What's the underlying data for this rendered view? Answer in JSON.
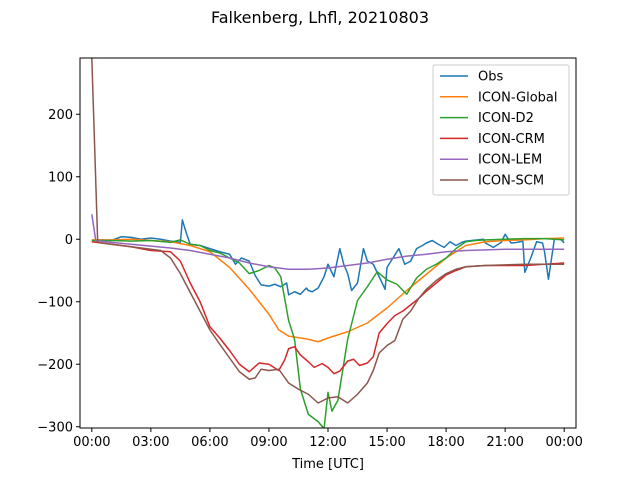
{
  "chart_data": {
    "type": "line",
    "title": "Falkenberg, Lhfl, 20210803",
    "xlabel": "Time [UTC]",
    "ylabel": "",
    "xlim": [
      -0.6,
      24.6
    ],
    "ylim": [
      -302,
      290
    ],
    "x_ticks": [
      0,
      3,
      6,
      9,
      12,
      15,
      18,
      21,
      24
    ],
    "x_tick_labels": [
      "00:00",
      "03:00",
      "06:00",
      "09:00",
      "12:00",
      "15:00",
      "18:00",
      "21:00",
      "00:00"
    ],
    "y_ticks": [
      -300,
      -200,
      -100,
      0,
      100,
      200
    ],
    "y_tick_labels": [
      "−300",
      "−200",
      "−100",
      "0",
      "100",
      "200"
    ],
    "grid": false,
    "legend_position": "top-right",
    "series": [
      {
        "name": "Obs",
        "color": "#1f77b4",
        "points": [
          [
            0,
            -2
          ],
          [
            0.5,
            -1
          ],
          [
            1,
            -2
          ],
          [
            1.5,
            4
          ],
          [
            2,
            3
          ],
          [
            2.5,
            0
          ],
          [
            3,
            2
          ],
          [
            3.5,
            0
          ],
          [
            4,
            -3
          ],
          [
            4.5,
            -5
          ],
          [
            4.6,
            31
          ],
          [
            4.8,
            10
          ],
          [
            5,
            -8
          ],
          [
            5.5,
            -10
          ],
          [
            6,
            -15
          ],
          [
            6.5,
            -20
          ],
          [
            7,
            -24
          ],
          [
            7.3,
            -40
          ],
          [
            7.6,
            -30
          ],
          [
            8,
            -35
          ],
          [
            8.3,
            -58
          ],
          [
            8.6,
            -73
          ],
          [
            9,
            -75
          ],
          [
            9.3,
            -72
          ],
          [
            9.6,
            -76
          ],
          [
            9.9,
            -70
          ],
          [
            10,
            -89
          ],
          [
            10.3,
            -84
          ],
          [
            10.6,
            -88
          ],
          [
            10.9,
            -78
          ],
          [
            11,
            -82
          ],
          [
            11.2,
            -84
          ],
          [
            11.5,
            -78
          ],
          [
            11.8,
            -60
          ],
          [
            12,
            -40
          ],
          [
            12.3,
            -60
          ],
          [
            12.6,
            -15
          ],
          [
            12.8,
            -40
          ],
          [
            13,
            -55
          ],
          [
            13.2,
            -82
          ],
          [
            13.5,
            -70
          ],
          [
            13.8,
            -15
          ],
          [
            14,
            -35
          ],
          [
            14.3,
            -40
          ],
          [
            14.6,
            -60
          ],
          [
            14.9,
            -80
          ],
          [
            15,
            -45
          ],
          [
            15.3,
            -30
          ],
          [
            15.6,
            -15
          ],
          [
            15.9,
            -40
          ],
          [
            16.2,
            -35
          ],
          [
            16.5,
            -15
          ],
          [
            16.8,
            -10
          ],
          [
            17,
            -6
          ],
          [
            17.3,
            -2
          ],
          [
            17.6,
            -8
          ],
          [
            17.9,
            -13
          ],
          [
            18.2,
            -4
          ],
          [
            18.5,
            -10
          ],
          [
            18.8,
            -5
          ],
          [
            19,
            -3
          ],
          [
            19.3,
            -2
          ],
          [
            19.6,
            -1
          ],
          [
            19.9,
            0
          ],
          [
            20,
            -6
          ],
          [
            20.4,
            -13
          ],
          [
            20.8,
            -5
          ],
          [
            21,
            8
          ],
          [
            21.3,
            -6
          ],
          [
            21.6,
            -5
          ],
          [
            21.9,
            -3
          ],
          [
            22,
            -53
          ],
          [
            22.3,
            -30
          ],
          [
            22.6,
            -4
          ],
          [
            22.9,
            -6
          ],
          [
            23,
            -20
          ],
          [
            23.2,
            -64
          ],
          [
            23.5,
            0
          ],
          [
            23.8,
            1
          ],
          [
            24,
            -6
          ]
        ]
      },
      {
        "name": "ICON-Global",
        "color": "#ff7f0e",
        "points": [
          [
            0,
            -1
          ],
          [
            1,
            -1
          ],
          [
            2,
            0
          ],
          [
            3,
            -2
          ],
          [
            4,
            -4
          ],
          [
            5,
            -10
          ],
          [
            6,
            -20
          ],
          [
            7,
            -45
          ],
          [
            8,
            -80
          ],
          [
            9,
            -120
          ],
          [
            9.5,
            -145
          ],
          [
            10,
            -155
          ],
          [
            11,
            -160
          ],
          [
            11.5,
            -164
          ],
          [
            12,
            -158
          ],
          [
            13,
            -148
          ],
          [
            14,
            -134
          ],
          [
            15,
            -110
          ],
          [
            16,
            -82
          ],
          [
            17,
            -56
          ],
          [
            18,
            -30
          ],
          [
            19,
            -10
          ],
          [
            20,
            -4
          ],
          [
            21,
            -2
          ],
          [
            22,
            -1
          ],
          [
            23,
            1
          ],
          [
            24,
            2
          ]
        ]
      },
      {
        "name": "ICON-D2",
        "color": "#2ca02c",
        "points": [
          [
            0,
            -2
          ],
          [
            1,
            -2
          ],
          [
            2,
            -3
          ],
          [
            3,
            -2
          ],
          [
            4,
            -5
          ],
          [
            4.5,
            -1
          ],
          [
            5,
            -8
          ],
          [
            5.5,
            -10
          ],
          [
            6,
            -18
          ],
          [
            6.5,
            -22
          ],
          [
            7,
            -30
          ],
          [
            7.5,
            -38
          ],
          [
            8,
            -55
          ],
          [
            8.5,
            -50
          ],
          [
            9,
            -42
          ],
          [
            9.3,
            -46
          ],
          [
            9.6,
            -60
          ],
          [
            10,
            -130
          ],
          [
            10.3,
            -160
          ],
          [
            10.6,
            -240
          ],
          [
            11,
            -280
          ],
          [
            11.5,
            -292
          ],
          [
            11.8,
            -303
          ],
          [
            12,
            -245
          ],
          [
            12.2,
            -275
          ],
          [
            12.5,
            -258
          ],
          [
            13,
            -160
          ],
          [
            13.5,
            -98
          ],
          [
            14,
            -76
          ],
          [
            14.5,
            -52
          ],
          [
            15,
            -65
          ],
          [
            15.5,
            -72
          ],
          [
            16,
            -88
          ],
          [
            16.5,
            -62
          ],
          [
            17,
            -48
          ],
          [
            17.5,
            -40
          ],
          [
            18,
            -30
          ],
          [
            18.5,
            -15
          ],
          [
            19,
            -4
          ],
          [
            19.5,
            -2
          ],
          [
            20,
            -1
          ],
          [
            21,
            0
          ],
          [
            22,
            1
          ],
          [
            23,
            1
          ],
          [
            24,
            -1
          ]
        ]
      },
      {
        "name": "ICON-CRM",
        "color": "#d62728",
        "points": [
          [
            0,
            -4
          ],
          [
            1,
            -8
          ],
          [
            2,
            -12
          ],
          [
            3,
            -18
          ],
          [
            4,
            -20
          ],
          [
            4.5,
            -35
          ],
          [
            5,
            -70
          ],
          [
            5.5,
            -100
          ],
          [
            6,
            -140
          ],
          [
            6.5,
            -158
          ],
          [
            7,
            -178
          ],
          [
            7.5,
            -200
          ],
          [
            8,
            -212
          ],
          [
            8.5,
            -198
          ],
          [
            9,
            -200
          ],
          [
            9.5,
            -210
          ],
          [
            9.8,
            -193
          ],
          [
            10,
            -175
          ],
          [
            10.3,
            -172
          ],
          [
            10.6,
            -185
          ],
          [
            11,
            -196
          ],
          [
            11.3,
            -205
          ],
          [
            11.7,
            -199
          ],
          [
            12,
            -205
          ],
          [
            12.3,
            -215
          ],
          [
            12.6,
            -211
          ],
          [
            13,
            -195
          ],
          [
            13.3,
            -192
          ],
          [
            13.6,
            -202
          ],
          [
            14,
            -198
          ],
          [
            14.3,
            -188
          ],
          [
            14.6,
            -150
          ],
          [
            15,
            -135
          ],
          [
            15.4,
            -122
          ],
          [
            15.8,
            -115
          ],
          [
            16.2,
            -105
          ],
          [
            16.6,
            -95
          ],
          [
            17,
            -83
          ],
          [
            17.5,
            -70
          ],
          [
            18,
            -57
          ],
          [
            18.5,
            -50
          ],
          [
            19,
            -44
          ],
          [
            20,
            -42
          ],
          [
            21,
            -42
          ],
          [
            22,
            -42
          ],
          [
            23,
            -40
          ],
          [
            24,
            -38
          ]
        ]
      },
      {
        "name": "ICON-LEM",
        "color": "#9467bd",
        "points": [
          [
            0,
            40
          ],
          [
            0.2,
            -2
          ],
          [
            1,
            -5
          ],
          [
            2,
            -8
          ],
          [
            3,
            -11
          ],
          [
            4,
            -14
          ],
          [
            5,
            -18
          ],
          [
            6,
            -24
          ],
          [
            7,
            -30
          ],
          [
            8,
            -38
          ],
          [
            9,
            -44
          ],
          [
            10,
            -48
          ],
          [
            11,
            -48
          ],
          [
            12,
            -46
          ],
          [
            13,
            -42
          ],
          [
            14,
            -38
          ],
          [
            15,
            -32
          ],
          [
            16,
            -27
          ],
          [
            17,
            -24
          ],
          [
            18,
            -20
          ],
          [
            19,
            -18
          ],
          [
            20,
            -17
          ],
          [
            21,
            -16
          ],
          [
            22,
            -16
          ],
          [
            23,
            -16
          ],
          [
            24,
            -16
          ]
        ]
      },
      {
        "name": "ICON-SCM",
        "color": "#8c564b",
        "points": [
          [
            0,
            290
          ],
          [
            0.3,
            -5
          ],
          [
            1,
            -8
          ],
          [
            2,
            -12
          ],
          [
            3,
            -16
          ],
          [
            3.5,
            -18
          ],
          [
            4,
            -30
          ],
          [
            4.5,
            -55
          ],
          [
            5,
            -85
          ],
          [
            5.5,
            -115
          ],
          [
            6,
            -145
          ],
          [
            6.5,
            -168
          ],
          [
            7,
            -190
          ],
          [
            7.5,
            -212
          ],
          [
            8,
            -224
          ],
          [
            8.3,
            -222
          ],
          [
            8.6,
            -208
          ],
          [
            9,
            -210
          ],
          [
            9.5,
            -208
          ],
          [
            10,
            -230
          ],
          [
            10.5,
            -240
          ],
          [
            11,
            -248
          ],
          [
            11.5,
            -262
          ],
          [
            12,
            -254
          ],
          [
            12.5,
            -252
          ],
          [
            13,
            -262
          ],
          [
            13.5,
            -248
          ],
          [
            14,
            -230
          ],
          [
            14.3,
            -210
          ],
          [
            14.6,
            -182
          ],
          [
            15,
            -170
          ],
          [
            15.4,
            -162
          ],
          [
            15.8,
            -128
          ],
          [
            16.2,
            -115
          ],
          [
            16.6,
            -95
          ],
          [
            17,
            -80
          ],
          [
            17.5,
            -66
          ],
          [
            18,
            -55
          ],
          [
            18.5,
            -48
          ],
          [
            19,
            -44
          ],
          [
            20,
            -42
          ],
          [
            21,
            -41
          ],
          [
            22,
            -40
          ],
          [
            23,
            -40
          ],
          [
            24,
            -40
          ]
        ]
      }
    ]
  }
}
